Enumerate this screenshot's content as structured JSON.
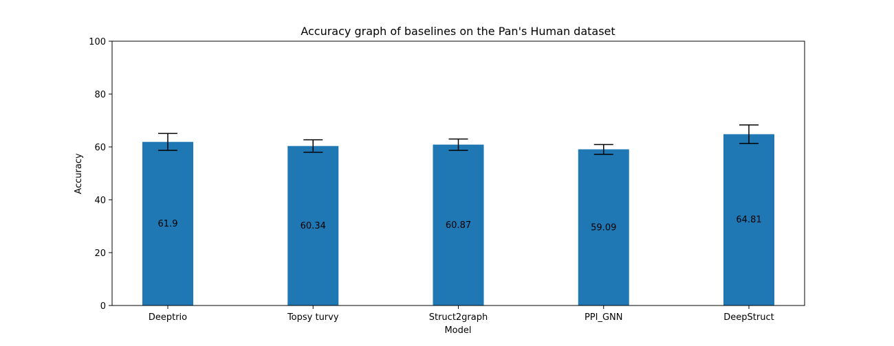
{
  "chart_data": {
    "type": "bar",
    "title": "Accuracy graph of baselines on the Pan's Human dataset",
    "xlabel": "Model",
    "ylabel": "Accuracy",
    "categories": [
      "Deeptrio",
      "Topsy turvy",
      "Struct2graph",
      "PPI_GNN",
      "DeepStruct"
    ],
    "values": [
      61.9,
      60.34,
      60.87,
      59.09,
      64.81
    ],
    "value_labels": [
      "61.9",
      "60.34",
      "60.87",
      "59.09",
      "64.81"
    ],
    "error_low": [
      58.7,
      58.0,
      58.7,
      57.2,
      61.3
    ],
    "error_high": [
      65.1,
      62.7,
      63.0,
      60.9,
      68.3
    ],
    "ylim": [
      0,
      100
    ],
    "yticks": [
      0,
      20,
      40,
      60,
      80,
      100
    ],
    "ytick_labels": [
      "0",
      "20",
      "40",
      "60",
      "80",
      "100"
    ],
    "grid": false,
    "bar_color": "#1f77b4",
    "error_color": "#000000"
  }
}
